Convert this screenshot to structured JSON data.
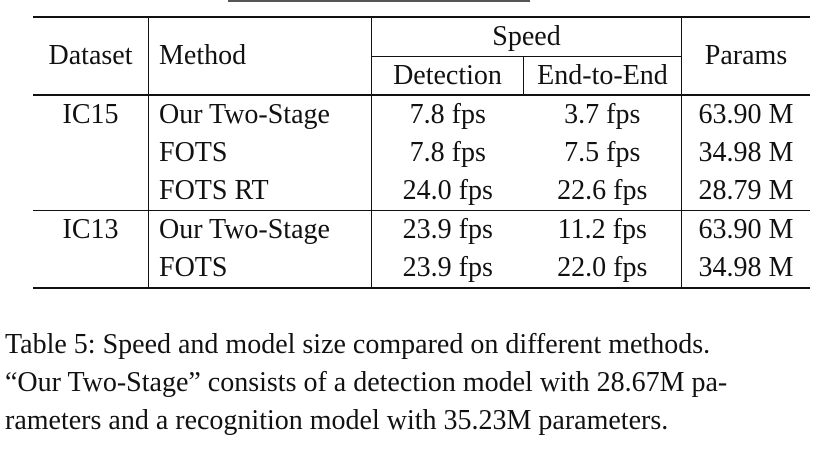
{
  "table": {
    "headers": {
      "dataset": "Dataset",
      "method": "Method",
      "speed": "Speed",
      "detection": "Detection",
      "end_to_end": "End-to-End",
      "params": "Params"
    },
    "groups": [
      {
        "dataset": "IC15",
        "rows": [
          {
            "method": "Our Two-Stage",
            "detection": "7.8 fps",
            "end_to_end": "3.7 fps",
            "params": "63.90 M"
          },
          {
            "method": "FOTS",
            "detection": "7.8 fps",
            "end_to_end": "7.5 fps",
            "params": "34.98 M"
          },
          {
            "method": "FOTS RT",
            "detection": "24.0 fps",
            "end_to_end": "22.6 fps",
            "params": "28.79 M"
          }
        ]
      },
      {
        "dataset": "IC13",
        "rows": [
          {
            "method": "Our Two-Stage",
            "detection": "23.9 fps",
            "end_to_end": "11.2 fps",
            "params": "63.90 M"
          },
          {
            "method": "FOTS",
            "detection": "23.9 fps",
            "end_to_end": "22.0 fps",
            "params": "34.98 M"
          }
        ]
      }
    ]
  },
  "caption": {
    "lines": [
      "Table 5: Speed and model size compared on different methods.",
      "“Our Two-Stage” consists of a detection model with 28.67M pa-",
      "rameters and a recognition model with 35.23M parameters."
    ]
  }
}
